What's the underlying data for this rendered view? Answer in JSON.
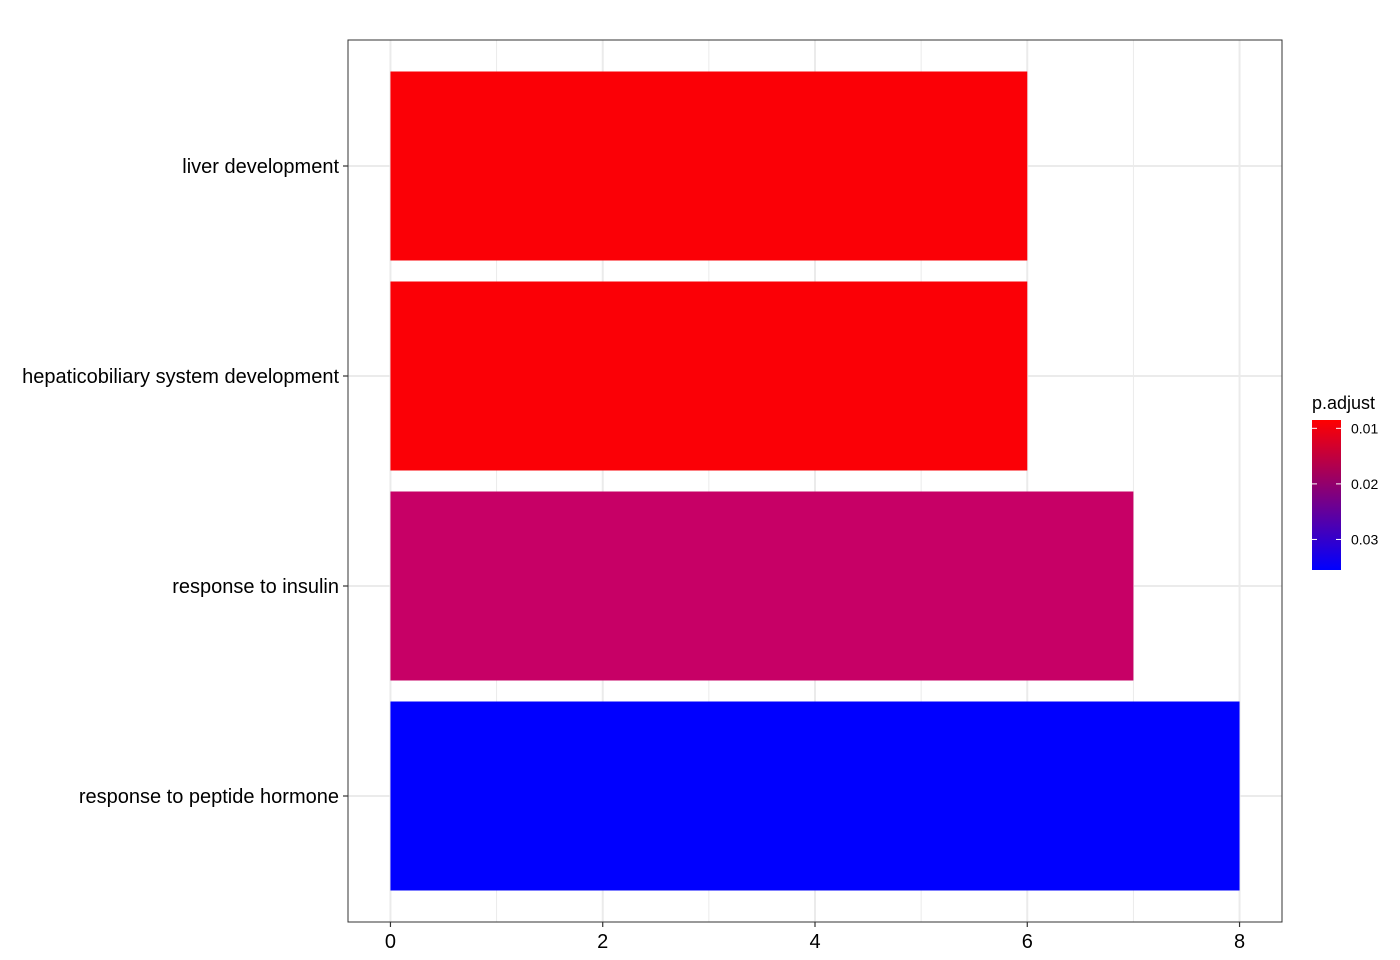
{
  "chart_data": {
    "type": "bar",
    "orientation": "horizontal",
    "categories": [
      "liver development",
      "hepaticobiliary system development",
      "response to insulin",
      "response to peptide hormone"
    ],
    "values": [
      6,
      6,
      7,
      8
    ],
    "p_adjust": [
      0.0085,
      0.0085,
      0.021,
      0.0355
    ],
    "bar_colors": [
      "#FB0006",
      "#FB0006",
      "#C70066",
      "#0000FF"
    ],
    "xlabel": "",
    "ylabel": "",
    "xlim": [
      -0.4,
      8.4
    ],
    "x_ticks": [
      0,
      2,
      4,
      6,
      8
    ],
    "x_tick_labels": [
      "0",
      "2",
      "4",
      "6",
      "8"
    ],
    "grid": true,
    "legend": {
      "title": "p.adjust",
      "placement": "right",
      "range": [
        0.0085,
        0.0355
      ],
      "ticks": [
        0.01,
        0.02,
        0.03
      ],
      "tick_labels": [
        "0.01",
        "0.02",
        "0.03"
      ],
      "color_low_value": "#FF0000",
      "color_high_value": "#0000FF"
    }
  }
}
